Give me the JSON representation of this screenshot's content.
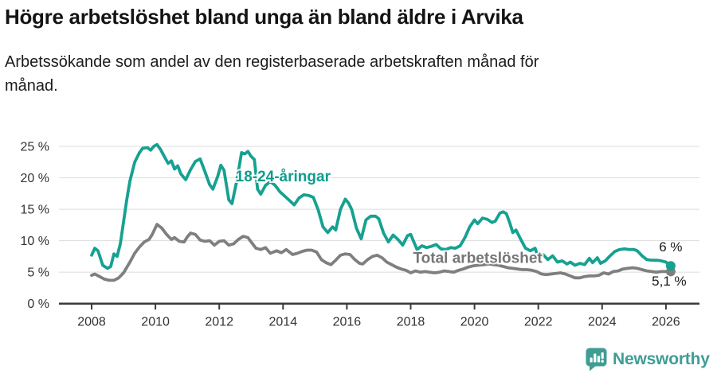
{
  "header": {
    "title": "Högre arbetslöshet bland unga än bland äldre i Arvika",
    "subtitle_line1": "Arbetssökande som andel av den registerbaserade arbetskraften månad för",
    "subtitle_line2": "månad."
  },
  "footer": {
    "brand": "Newsworthy",
    "brand_color": "#3f9d94"
  },
  "chart_data": {
    "type": "line",
    "title": "Högre arbetslöshet bland unga än bland äldre i Arvika",
    "subtitle": "Arbetssökande som andel av den registerbaserade arbetskraften månad för månad.",
    "xlabel": "",
    "ylabel": "",
    "x_range": [
      2007.85,
      2026.6
    ],
    "ylim": [
      0,
      27
    ],
    "grid": "horizontal",
    "grid_color": "#dcdcdc",
    "axis_color": "#3a3a3a",
    "x_ticks": [
      2008,
      2010,
      2012,
      2014,
      2016,
      2018,
      2020,
      2022,
      2024,
      2026
    ],
    "y_ticks": [
      0,
      5,
      10,
      15,
      20,
      25
    ],
    "y_tick_suffix": " %",
    "series": [
      {
        "name": "18-24-åringar",
        "color": "#16a191",
        "points": [
          [
            2008.0,
            7.7
          ],
          [
            2008.1,
            8.8
          ],
          [
            2008.2,
            8.4
          ],
          [
            2008.35,
            6.1
          ],
          [
            2008.5,
            5.6
          ],
          [
            2008.6,
            5.9
          ],
          [
            2008.7,
            7.9
          ],
          [
            2008.8,
            7.5
          ],
          [
            2008.9,
            9.5
          ],
          [
            2009.0,
            13.0
          ],
          [
            2009.1,
            16.5
          ],
          [
            2009.2,
            19.5
          ],
          [
            2009.35,
            22.5
          ],
          [
            2009.5,
            24.0
          ],
          [
            2009.6,
            24.7
          ],
          [
            2009.75,
            24.8
          ],
          [
            2009.85,
            24.4
          ],
          [
            2009.95,
            25.0
          ],
          [
            2010.05,
            25.3
          ],
          [
            2010.15,
            24.6
          ],
          [
            2010.3,
            23.2
          ],
          [
            2010.4,
            22.3
          ],
          [
            2010.5,
            22.7
          ],
          [
            2010.6,
            21.4
          ],
          [
            2010.7,
            21.9
          ],
          [
            2010.8,
            20.6
          ],
          [
            2010.95,
            19.7
          ],
          [
            2011.1,
            21.3
          ],
          [
            2011.25,
            22.6
          ],
          [
            2011.4,
            23.0
          ],
          [
            2011.55,
            21.0
          ],
          [
            2011.7,
            18.9
          ],
          [
            2011.8,
            18.2
          ],
          [
            2011.95,
            20.2
          ],
          [
            2012.05,
            22.0
          ],
          [
            2012.15,
            21.2
          ],
          [
            2012.3,
            16.5
          ],
          [
            2012.4,
            15.9
          ],
          [
            2012.55,
            19.5
          ],
          [
            2012.7,
            24.0
          ],
          [
            2012.8,
            23.8
          ],
          [
            2012.9,
            24.2
          ],
          [
            2013.0,
            23.4
          ],
          [
            2013.1,
            22.9
          ],
          [
            2013.2,
            18.2
          ],
          [
            2013.3,
            17.4
          ],
          [
            2013.45,
            18.8
          ],
          [
            2013.6,
            19.4
          ],
          [
            2013.75,
            18.8
          ],
          [
            2013.9,
            17.8
          ],
          [
            2014.05,
            17.1
          ],
          [
            2014.2,
            16.4
          ],
          [
            2014.35,
            15.7
          ],
          [
            2014.5,
            16.8
          ],
          [
            2014.65,
            17.3
          ],
          [
            2014.8,
            17.2
          ],
          [
            2014.95,
            16.9
          ],
          [
            2015.1,
            14.9
          ],
          [
            2015.25,
            12.2
          ],
          [
            2015.4,
            11.3
          ],
          [
            2015.55,
            12.2
          ],
          [
            2015.65,
            11.7
          ],
          [
            2015.8,
            15.0
          ],
          [
            2015.95,
            16.6
          ],
          [
            2016.05,
            16.0
          ],
          [
            2016.15,
            15.0
          ],
          [
            2016.3,
            12.0
          ],
          [
            2016.45,
            10.3
          ],
          [
            2016.6,
            13.3
          ],
          [
            2016.75,
            13.9
          ],
          [
            2016.9,
            13.9
          ],
          [
            2017.0,
            13.5
          ],
          [
            2017.15,
            11.2
          ],
          [
            2017.3,
            9.8
          ],
          [
            2017.45,
            10.9
          ],
          [
            2017.6,
            10.2
          ],
          [
            2017.75,
            9.3
          ],
          [
            2017.9,
            10.8
          ],
          [
            2018.0,
            11.0
          ],
          [
            2018.2,
            8.6
          ],
          [
            2018.35,
            9.2
          ],
          [
            2018.5,
            8.9
          ],
          [
            2018.65,
            9.1
          ],
          [
            2018.8,
            9.4
          ],
          [
            2018.95,
            8.7
          ],
          [
            2019.1,
            8.6
          ],
          [
            2019.25,
            8.9
          ],
          [
            2019.4,
            8.8
          ],
          [
            2019.55,
            9.2
          ],
          [
            2019.7,
            10.5
          ],
          [
            2019.85,
            12.2
          ],
          [
            2020.0,
            13.3
          ],
          [
            2020.1,
            12.7
          ],
          [
            2020.25,
            13.6
          ],
          [
            2020.4,
            13.4
          ],
          [
            2020.55,
            12.9
          ],
          [
            2020.65,
            13.1
          ],
          [
            2020.8,
            14.4
          ],
          [
            2020.9,
            14.6
          ],
          [
            2021.0,
            14.3
          ],
          [
            2021.1,
            12.9
          ],
          [
            2021.2,
            11.3
          ],
          [
            2021.3,
            11.7
          ],
          [
            2021.45,
            10.2
          ],
          [
            2021.6,
            8.8
          ],
          [
            2021.75,
            8.4
          ],
          [
            2021.9,
            8.8
          ],
          [
            2022.0,
            7.3
          ],
          [
            2022.15,
            7.8
          ],
          [
            2022.3,
            7.0
          ],
          [
            2022.45,
            7.6
          ],
          [
            2022.6,
            6.6
          ],
          [
            2022.75,
            6.8
          ],
          [
            2022.9,
            6.3
          ],
          [
            2023.0,
            6.6
          ],
          [
            2023.15,
            6.1
          ],
          [
            2023.3,
            6.4
          ],
          [
            2023.45,
            6.2
          ],
          [
            2023.6,
            7.2
          ],
          [
            2023.7,
            6.5
          ],
          [
            2023.85,
            7.3
          ],
          [
            2023.95,
            6.4
          ],
          [
            2024.1,
            6.8
          ],
          [
            2024.25,
            7.6
          ],
          [
            2024.4,
            8.3
          ],
          [
            2024.55,
            8.6
          ],
          [
            2024.7,
            8.7
          ],
          [
            2024.85,
            8.6
          ],
          [
            2025.0,
            8.6
          ],
          [
            2025.1,
            8.4
          ],
          [
            2025.25,
            7.6
          ],
          [
            2025.4,
            7.0
          ],
          [
            2025.55,
            6.9
          ],
          [
            2025.7,
            6.9
          ],
          [
            2025.85,
            6.8
          ],
          [
            2026.0,
            6.6
          ],
          [
            2026.15,
            6.0
          ]
        ]
      },
      {
        "name": "Total arbetslöshet",
        "color": "#7f7f7f",
        "points": [
          [
            2008.0,
            4.5
          ],
          [
            2008.1,
            4.7
          ],
          [
            2008.25,
            4.3
          ],
          [
            2008.4,
            3.9
          ],
          [
            2008.55,
            3.7
          ],
          [
            2008.7,
            3.7
          ],
          [
            2008.85,
            4.1
          ],
          [
            2009.0,
            4.9
          ],
          [
            2009.2,
            6.6
          ],
          [
            2009.35,
            8.0
          ],
          [
            2009.5,
            9.0
          ],
          [
            2009.65,
            9.8
          ],
          [
            2009.8,
            10.2
          ],
          [
            2009.9,
            11.0
          ],
          [
            2010.05,
            12.6
          ],
          [
            2010.2,
            12.0
          ],
          [
            2010.35,
            11.0
          ],
          [
            2010.5,
            10.2
          ],
          [
            2010.6,
            10.5
          ],
          [
            2010.75,
            9.9
          ],
          [
            2010.9,
            9.8
          ],
          [
            2011.0,
            10.6
          ],
          [
            2011.1,
            11.2
          ],
          [
            2011.25,
            11.0
          ],
          [
            2011.4,
            10.1
          ],
          [
            2011.55,
            9.9
          ],
          [
            2011.7,
            10.0
          ],
          [
            2011.85,
            9.3
          ],
          [
            2012.0,
            9.9
          ],
          [
            2012.15,
            10.0
          ],
          [
            2012.3,
            9.3
          ],
          [
            2012.45,
            9.5
          ],
          [
            2012.6,
            10.2
          ],
          [
            2012.75,
            10.7
          ],
          [
            2012.9,
            10.5
          ],
          [
            2013.0,
            9.8
          ],
          [
            2013.15,
            8.8
          ],
          [
            2013.3,
            8.6
          ],
          [
            2013.45,
            8.9
          ],
          [
            2013.6,
            8.0
          ],
          [
            2013.8,
            8.4
          ],
          [
            2013.95,
            8.1
          ],
          [
            2014.1,
            8.6
          ],
          [
            2014.3,
            7.8
          ],
          [
            2014.45,
            8.0
          ],
          [
            2014.6,
            8.3
          ],
          [
            2014.75,
            8.5
          ],
          [
            2014.9,
            8.5
          ],
          [
            2015.05,
            8.2
          ],
          [
            2015.2,
            7.0
          ],
          [
            2015.35,
            6.5
          ],
          [
            2015.5,
            6.2
          ],
          [
            2015.65,
            6.9
          ],
          [
            2015.8,
            7.7
          ],
          [
            2015.95,
            7.9
          ],
          [
            2016.1,
            7.8
          ],
          [
            2016.25,
            7.0
          ],
          [
            2016.4,
            6.4
          ],
          [
            2016.5,
            6.3
          ],
          [
            2016.65,
            7.0
          ],
          [
            2016.8,
            7.5
          ],
          [
            2016.95,
            7.7
          ],
          [
            2017.1,
            7.3
          ],
          [
            2017.25,
            6.6
          ],
          [
            2017.4,
            6.2
          ],
          [
            2017.55,
            5.8
          ],
          [
            2017.7,
            5.5
          ],
          [
            2017.85,
            5.3
          ],
          [
            2018.0,
            4.9
          ],
          [
            2018.15,
            5.2
          ],
          [
            2018.3,
            5.0
          ],
          [
            2018.45,
            5.1
          ],
          [
            2018.6,
            5.0
          ],
          [
            2018.75,
            4.9
          ],
          [
            2018.9,
            5.0
          ],
          [
            2019.05,
            5.2
          ],
          [
            2019.2,
            5.1
          ],
          [
            2019.35,
            5.0
          ],
          [
            2019.5,
            5.3
          ],
          [
            2019.65,
            5.5
          ],
          [
            2019.8,
            5.8
          ],
          [
            2019.95,
            6.0
          ],
          [
            2020.1,
            6.1
          ],
          [
            2020.3,
            6.2
          ],
          [
            2020.45,
            6.3
          ],
          [
            2020.6,
            6.2
          ],
          [
            2020.75,
            6.1
          ],
          [
            2020.9,
            5.9
          ],
          [
            2021.05,
            5.7
          ],
          [
            2021.2,
            5.6
          ],
          [
            2021.35,
            5.5
          ],
          [
            2021.5,
            5.4
          ],
          [
            2021.65,
            5.4
          ],
          [
            2021.8,
            5.3
          ],
          [
            2021.95,
            5.1
          ],
          [
            2022.1,
            4.7
          ],
          [
            2022.25,
            4.6
          ],
          [
            2022.4,
            4.7
          ],
          [
            2022.55,
            4.8
          ],
          [
            2022.7,
            4.9
          ],
          [
            2022.85,
            4.7
          ],
          [
            2023.0,
            4.4
          ],
          [
            2023.15,
            4.1
          ],
          [
            2023.3,
            4.1
          ],
          [
            2023.45,
            4.3
          ],
          [
            2023.6,
            4.4
          ],
          [
            2023.75,
            4.4
          ],
          [
            2023.9,
            4.5
          ],
          [
            2024.05,
            4.9
          ],
          [
            2024.2,
            4.7
          ],
          [
            2024.35,
            5.1
          ],
          [
            2024.5,
            5.2
          ],
          [
            2024.65,
            5.5
          ],
          [
            2024.8,
            5.6
          ],
          [
            2024.95,
            5.7
          ],
          [
            2025.1,
            5.6
          ],
          [
            2025.25,
            5.4
          ],
          [
            2025.4,
            5.2
          ],
          [
            2025.55,
            5.1
          ],
          [
            2025.7,
            5.0
          ],
          [
            2025.85,
            5.1
          ],
          [
            2026.0,
            5.1
          ],
          [
            2026.15,
            5.1
          ]
        ]
      }
    ],
    "series_labels": [
      {
        "text": "18-24-åringar",
        "color": "#0f9c8d",
        "year": 2014.0,
        "pct": 20.2
      },
      {
        "text": "Total arbetslöshet",
        "color": "#757575",
        "year": 2020.1,
        "pct": 7.25
      }
    ],
    "end_labels": [
      {
        "text": "6 %",
        "series_index": 0,
        "year": 2026.15,
        "pct": 8.3
      },
      {
        "text": "5,1 %",
        "series_index": 1,
        "year": 2026.1,
        "pct": 2.9
      }
    ],
    "legend_position": "inline-labels"
  }
}
